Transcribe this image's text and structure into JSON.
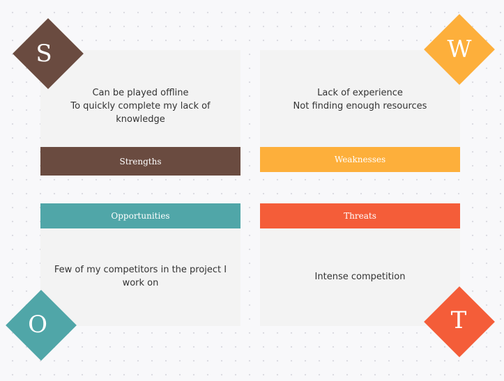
{
  "swot": {
    "strengths": {
      "letter": "S",
      "label": "Strengths",
      "lines": [
        "Can be played offline",
        "To quickly complete my lack of knowledge"
      ],
      "color": "#6a4b40"
    },
    "weaknesses": {
      "letter": "W",
      "label": "Weaknesses",
      "lines": [
        "Lack of experience",
        "Not finding enough resources"
      ],
      "color": "#fdaf3b"
    },
    "opportunities": {
      "letter": "O",
      "label": "Opportunities",
      "lines": [
        "Few of my competitors in the project I work on"
      ],
      "color": "#50a6a8"
    },
    "threats": {
      "letter": "T",
      "label": "Threats",
      "lines": [
        "Intense competition"
      ],
      "color": "#f45d39"
    }
  }
}
